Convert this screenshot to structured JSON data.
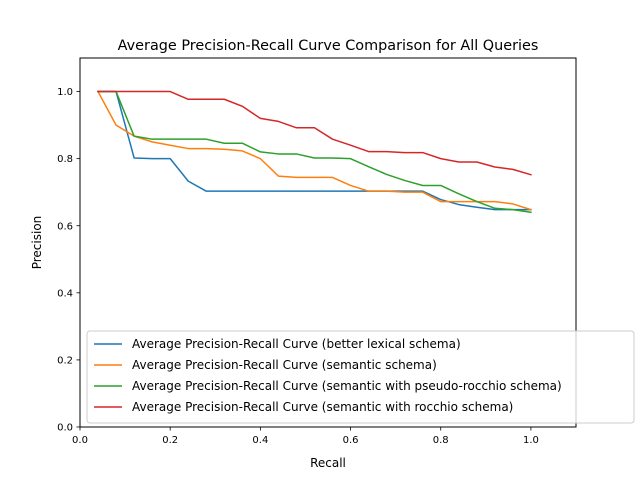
{
  "chart_data": {
    "type": "line",
    "title": "Average Precision-Recall Curve Comparison for All Queries",
    "xlabel": "Recall",
    "ylabel": "Precision",
    "xlim": [
      0.0,
      1.1
    ],
    "ylim": [
      0.0,
      1.1
    ],
    "xticks": [
      "0.0",
      "0.2",
      "0.4",
      "0.6",
      "0.8",
      "1.0"
    ],
    "yticks": [
      "0.0",
      "0.2",
      "0.4",
      "0.6",
      "0.8",
      "1.0"
    ],
    "grid": false,
    "legend_position": "lower right",
    "series": [
      {
        "name": "Average Precision-Recall Curve (better lexical schema)",
        "color": "#1f77b4",
        "x": [
          0.04,
          0.08,
          0.12,
          0.16,
          0.2,
          0.24,
          0.28,
          0.32,
          0.36,
          0.4,
          0.44,
          0.48,
          0.52,
          0.56,
          0.6,
          0.64,
          0.68,
          0.72,
          0.76,
          0.8,
          0.84,
          0.88,
          0.92,
          0.96,
          1.0
        ],
        "y": [
          1.0,
          1.0,
          0.802,
          0.8,
          0.8,
          0.733,
          0.703,
          0.703,
          0.703,
          0.703,
          0.703,
          0.703,
          0.703,
          0.703,
          0.703,
          0.703,
          0.703,
          0.703,
          0.703,
          0.678,
          0.663,
          0.655,
          0.648,
          0.648,
          0.648
        ]
      },
      {
        "name": "Average Precision-Recall Curve (semantic schema)",
        "color": "#ff7f0e",
        "x": [
          0.04,
          0.08,
          0.12,
          0.16,
          0.2,
          0.24,
          0.28,
          0.32,
          0.36,
          0.4,
          0.44,
          0.48,
          0.52,
          0.56,
          0.6,
          0.64,
          0.68,
          0.72,
          0.76,
          0.8,
          0.84,
          0.88,
          0.92,
          0.96,
          1.0
        ],
        "y": [
          1.0,
          0.9,
          0.867,
          0.85,
          0.84,
          0.83,
          0.83,
          0.828,
          0.823,
          0.8,
          0.748,
          0.744,
          0.744,
          0.744,
          0.72,
          0.703,
          0.703,
          0.7,
          0.7,
          0.672,
          0.672,
          0.672,
          0.672,
          0.665,
          0.648
        ]
      },
      {
        "name": "Average Precision-Recall Curve (semantic with pseudo-rocchio schema)",
        "color": "#2ca02c",
        "x": [
          0.04,
          0.08,
          0.12,
          0.16,
          0.2,
          0.24,
          0.28,
          0.32,
          0.36,
          0.4,
          0.44,
          0.48,
          0.52,
          0.56,
          0.6,
          0.64,
          0.68,
          0.72,
          0.76,
          0.8,
          0.84,
          0.88,
          0.92,
          0.96,
          1.0
        ],
        "y": [
          1.0,
          1.0,
          0.867,
          0.858,
          0.858,
          0.858,
          0.858,
          0.846,
          0.846,
          0.82,
          0.814,
          0.814,
          0.802,
          0.802,
          0.8,
          0.776,
          0.753,
          0.735,
          0.72,
          0.72,
          0.695,
          0.672,
          0.652,
          0.648,
          0.64
        ]
      },
      {
        "name": "Average Precision-Recall Curve (semantic with rocchio schema)",
        "color": "#d62728",
        "x": [
          0.04,
          0.08,
          0.12,
          0.16,
          0.2,
          0.24,
          0.28,
          0.32,
          0.36,
          0.4,
          0.44,
          0.48,
          0.52,
          0.56,
          0.6,
          0.64,
          0.68,
          0.72,
          0.76,
          0.8,
          0.84,
          0.88,
          0.92,
          0.96,
          1.0
        ],
        "y": [
          1.0,
          1.0,
          1.0,
          1.0,
          1.0,
          0.977,
          0.977,
          0.977,
          0.956,
          0.92,
          0.911,
          0.892,
          0.892,
          0.858,
          0.84,
          0.821,
          0.821,
          0.818,
          0.818,
          0.8,
          0.79,
          0.79,
          0.775,
          0.768,
          0.752
        ]
      }
    ]
  }
}
